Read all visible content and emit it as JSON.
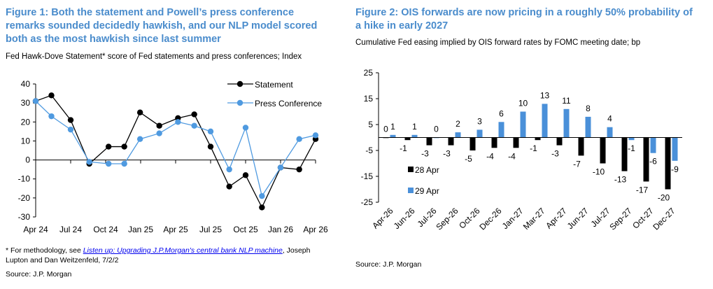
{
  "figure1": {
    "title": "Figure 1: Both the statement and Powell’s press conference remarks sounded decidedly hawkish, and our NLP model scored both as the most hawkish since last summer",
    "subtitle": "Fed Hawk-Dove Statement* score of Fed statements and press conferences; Index",
    "footnote_prefix": "* For methodology, see ",
    "footnote_link": "Listen up: Upgrading J.P.Morgan's central bank NLP machine",
    "footnote_suffix": ", Joseph Lupton and Dan Weitzenfeld, 7/2/2",
    "source": "Source: J.P. Morgan"
  },
  "figure2": {
    "title": "Figure 2: OIS forwards are now pricing in a roughly 50% probability of a hike in early 2027",
    "subtitle": "Cumulative Fed easing implied by OIS forward rates by FOMC meeting date; bp",
    "source": "Source: J.P. Morgan"
  },
  "chart_data": [
    {
      "type": "line",
      "title": "Fed Hawk-Dove Statement score",
      "x_unit": "months since Apr 24",
      "x": [
        0,
        1.35,
        3,
        4.6,
        6.25,
        7.6,
        8.95,
        10.6,
        12.2,
        13.6,
        15,
        16.6,
        18,
        19.4,
        21,
        22.6,
        24
      ],
      "xticks": [
        {
          "at": 0,
          "label": "Apr 24"
        },
        {
          "at": 3,
          "label": "Jul 24"
        },
        {
          "at": 6,
          "label": "Oct 24"
        },
        {
          "at": 9,
          "label": "Jan 25"
        },
        {
          "at": 12,
          "label": "Apr 25"
        },
        {
          "at": 15,
          "label": "Jul 25"
        },
        {
          "at": 18,
          "label": "Oct 25"
        },
        {
          "at": 21,
          "label": "Jan 26"
        },
        {
          "at": 24,
          "label": "Apr 26"
        }
      ],
      "ylim": [
        -30,
        40
      ],
      "yticks": [
        40,
        30,
        20,
        10,
        0,
        -10,
        -20,
        -30
      ],
      "legend": "top-right",
      "series": [
        {
          "name": "Statement",
          "color": "#000000",
          "values": [
            31,
            34,
            21,
            -2,
            7,
            7,
            25,
            18,
            22,
            24,
            7,
            -14,
            -8,
            -25,
            -4,
            -5,
            11
          ]
        },
        {
          "name": "Press Conference",
          "color": "#4f9ae0",
          "values": [
            31,
            23,
            16,
            -1,
            -2,
            -2,
            11,
            14,
            20,
            18,
            15,
            -5,
            17,
            -19,
            -4,
            11,
            13
          ]
        }
      ]
    },
    {
      "type": "bar",
      "categories": [
        "Apr-26",
        "Jun-26",
        "Jul-26",
        "Sep-26",
        "Oct-26",
        "Dec-26",
        "Jan-27",
        "Mar-27",
        "Apr-27",
        "Jun-27",
        "Jul-27",
        "Sep-27",
        "Oct-27",
        "Dec-27"
      ],
      "ylim": [
        -25,
        25
      ],
      "yticks": [
        25,
        15,
        5,
        -5,
        -15,
        -25
      ],
      "legend": "left-center",
      "series": [
        {
          "name": "28 Apr",
          "color": "#000000",
          "values": [
            0,
            -1,
            -3,
            -3,
            -5,
            -4,
            -4,
            -1,
            -3,
            -7,
            -10,
            -13,
            -17,
            -20
          ]
        },
        {
          "name": "29 Apr",
          "color": "#4a90d9",
          "values": [
            1,
            1,
            0,
            2,
            3,
            6,
            10,
            13,
            11,
            8,
            4,
            -1,
            -6,
            -9
          ]
        }
      ]
    }
  ]
}
